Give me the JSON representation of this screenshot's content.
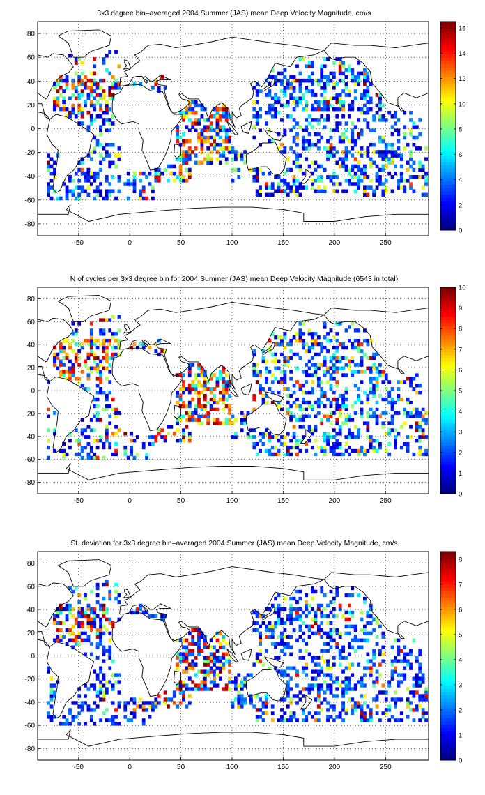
{
  "figure": {
    "panel_order": [
      "mean_velocity",
      "n_cycles",
      "std_velocity"
    ]
  },
  "chart_data": [
    {
      "id": "mean_velocity",
      "type": "heatmap",
      "title": "3x3 degree bin–averaged 2004 Summer (JAS) mean Deep Velocity Magnitude, cm/s",
      "xlim": [
        -90,
        292
      ],
      "ylim": [
        -90,
        90
      ],
      "xticks": [
        -50,
        0,
        50,
        100,
        150,
        200,
        250
      ],
      "yticks": [
        -80,
        -60,
        -40,
        -20,
        0,
        20,
        40,
        60,
        80
      ],
      "grid": true,
      "grid_style": "dotted",
      "bin_deg": 3,
      "colormap": "jet",
      "colorbar": {
        "min": 0,
        "max": 16.5,
        "ticks": [
          0,
          2,
          4,
          6,
          8,
          10,
          12,
          14,
          16
        ],
        "placement": "right"
      },
      "color_shown_cells": true,
      "value_profile": {
        "low_fraction": 0.6,
        "mid_fraction": 0.27,
        "high_fraction": 0.13
      }
    },
    {
      "id": "n_cycles",
      "type": "heatmap",
      "title": "N of cycles per 3x3 degree bin for 2004 Summer (JAS) mean Deep Velocity Magnitude (6543 in total)",
      "xlim": [
        -90,
        292
      ],
      "ylim": [
        -90,
        90
      ],
      "xticks": [
        -50,
        0,
        50,
        100,
        150,
        200,
        250
      ],
      "yticks": [
        -80,
        -60,
        -40,
        -20,
        0,
        20,
        40,
        60,
        80
      ],
      "grid": true,
      "grid_style": "dotted",
      "bin_deg": 3,
      "colormap": "jet",
      "colorbar": {
        "min": 0,
        "max": 10,
        "ticks": [
          0,
          1,
          2,
          3,
          4,
          5,
          6,
          7,
          8,
          9,
          10
        ],
        "placement": "right"
      },
      "total_cycles": 6543,
      "value_profile": {
        "low_fraction": 0.45,
        "mid_fraction": 0.3,
        "high_fraction": 0.25
      }
    },
    {
      "id": "std_velocity",
      "type": "heatmap",
      "title": "St. deviation for 3x3 degree bin–averaged 2004 Summer (JAS) mean Deep Velocity Magnitude, cm/s",
      "xlim": [
        -90,
        292
      ],
      "ylim": [
        -90,
        90
      ],
      "xticks": [
        -50,
        0,
        50,
        100,
        150,
        200,
        250
      ],
      "yticks": [
        -80,
        -60,
        -40,
        -20,
        0,
        20,
        40,
        60,
        80
      ],
      "grid": true,
      "grid_style": "dotted",
      "bin_deg": 3,
      "colormap": "jet",
      "colorbar": {
        "min": 0,
        "max": 8.3,
        "ticks": [
          0,
          1,
          2,
          3,
          4,
          5,
          6,
          7,
          8
        ],
        "placement": "right"
      },
      "value_profile": {
        "low_fraction": 0.72,
        "mid_fraction": 0.18,
        "high_fraction": 0.1
      }
    }
  ],
  "regions": {
    "description_note": "",
    "sampled_ocean_boxes": [
      {
        "lon": [
          -80,
          -10
        ],
        "lat": [
          -60,
          -15
        ],
        "density": 0.35,
        "hot": 0.05
      },
      {
        "lon": [
          -80,
          -15
        ],
        "lat": [
          -15,
          10
        ],
        "density": 0.25,
        "hot": 0.05
      },
      {
        "lon": [
          -75,
          -10
        ],
        "lat": [
          10,
          45
        ],
        "density": 0.45,
        "hot": 0.35
      },
      {
        "lon": [
          -60,
          -10
        ],
        "lat": [
          45,
          65
        ],
        "density": 0.2,
        "hot": 0.15
      },
      {
        "lon": [
          -5,
          25
        ],
        "lat": [
          -60,
          -35
        ],
        "density": 0.3,
        "hot": 0.1
      },
      {
        "lon": [
          25,
          60
        ],
        "lat": [
          -45,
          -30
        ],
        "density": 0.45,
        "hot": 0.35
      },
      {
        "lon": [
          45,
          100
        ],
        "lat": [
          -30,
          25
        ],
        "density": 0.55,
        "hot": 0.35
      },
      {
        "lon": [
          100,
          120
        ],
        "lat": [
          -45,
          -15
        ],
        "density": 0.3,
        "hot": 0.05
      },
      {
        "lon": [
          120,
          290
        ],
        "lat": [
          -58,
          -15
        ],
        "density": 0.38,
        "hot": 0.08
      },
      {
        "lon": [
          120,
          285
        ],
        "lat": [
          -15,
          15
        ],
        "density": 0.3,
        "hot": 0.06
      },
      {
        "lon": [
          120,
          250
        ],
        "lat": [
          15,
          45
        ],
        "density": 0.45,
        "hot": 0.08
      },
      {
        "lon": [
          135,
          240
        ],
        "lat": [
          45,
          60
        ],
        "density": 0.25,
        "hot": 0.05
      },
      {
        "lon": [
          -5,
          35
        ],
        "lat": [
          30,
          45
        ],
        "density": 0.35,
        "hot": 0.2
      }
    ]
  }
}
